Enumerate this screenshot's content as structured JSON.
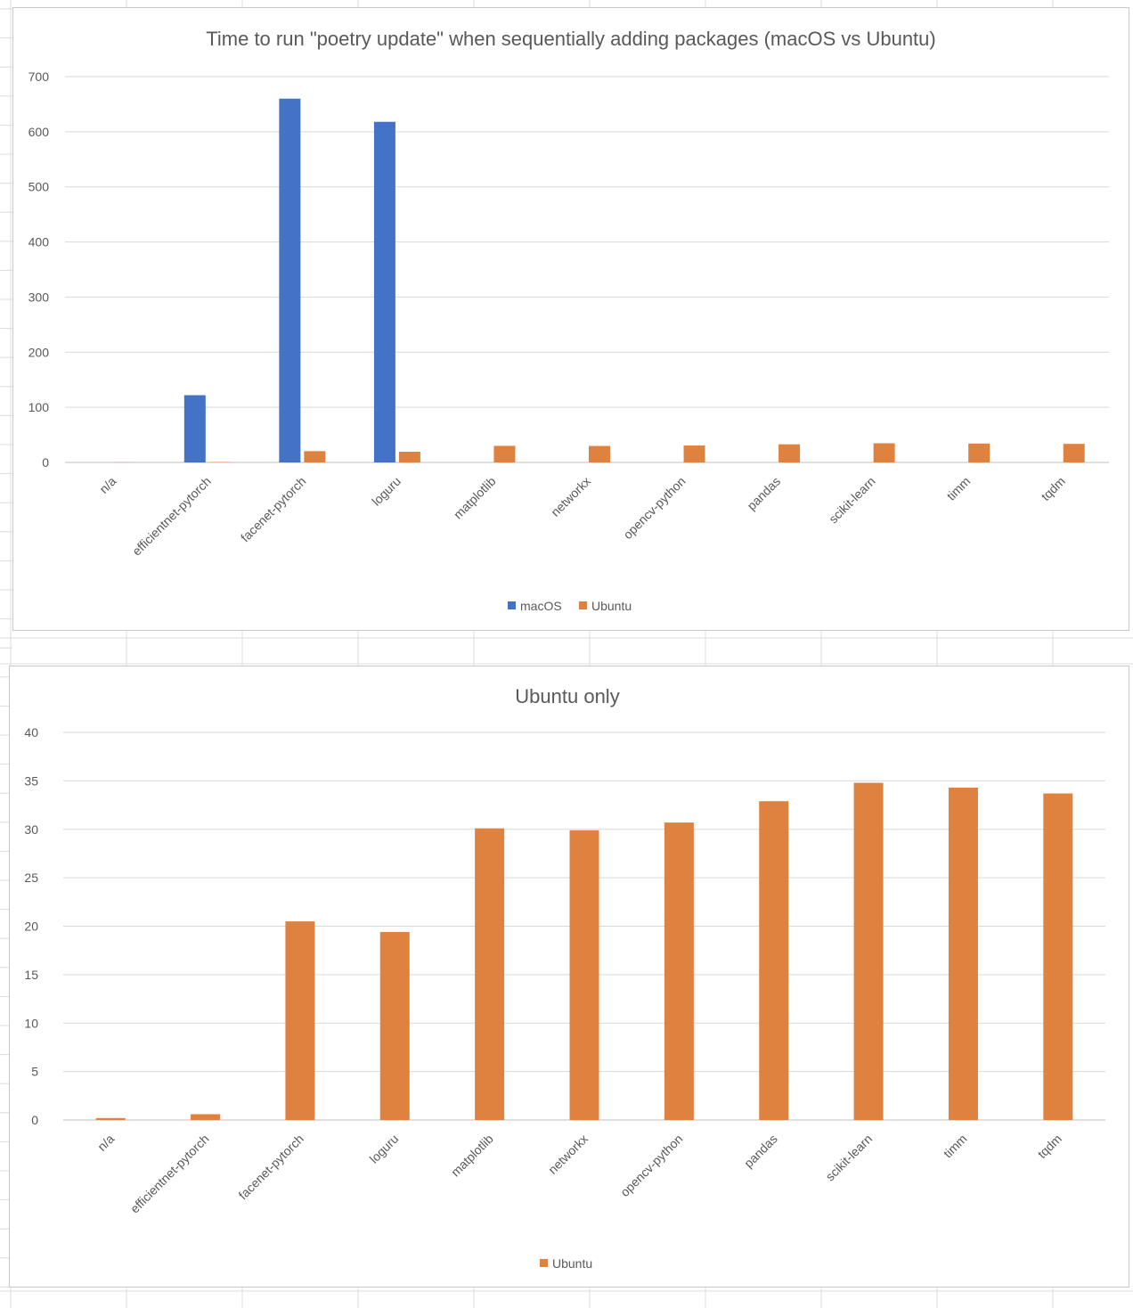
{
  "colors": {
    "macos": "#4472c4",
    "ubuntu": "#e0823f",
    "grid": "#d9d9d9",
    "text": "#595959"
  },
  "chart_data": [
    {
      "type": "bar",
      "title": "Time to run \"poetry update\" when sequentially adding packages (macOS vs Ubuntu)",
      "xlabel": "",
      "ylabel": "",
      "ylim": [
        0,
        700
      ],
      "yticks": [
        "0",
        "100",
        "200",
        "300",
        "400",
        "500",
        "600",
        "700"
      ],
      "grid": true,
      "legend_position": "bottom",
      "categories": [
        "n/a",
        "efficientnet-pytorch",
        "facenet-pytorch",
        "loguru",
        "matplotlib",
        "networkx",
        "opencv-python",
        "pandas",
        "scikit-learn",
        "timm",
        "tqdm"
      ],
      "series": [
        {
          "name": "macOS",
          "color": "#4472c4",
          "values": [
            0,
            122,
            660,
            618,
            0,
            0,
            0,
            0,
            0,
            0,
            0
          ]
        },
        {
          "name": "Ubuntu",
          "color": "#e0823f",
          "values": [
            0.2,
            0.6,
            20.5,
            19.4,
            30.1,
            29.9,
            30.7,
            32.9,
            34.8,
            34.3,
            33.7
          ]
        }
      ]
    },
    {
      "type": "bar",
      "title": "Ubuntu only",
      "xlabel": "",
      "ylabel": "",
      "ylim": [
        0,
        40
      ],
      "yticks": [
        "0",
        "5",
        "10",
        "15",
        "20",
        "25",
        "30",
        "35",
        "40"
      ],
      "grid": true,
      "legend_position": "bottom",
      "categories": [
        "n/a",
        "efficientnet-pytorch",
        "facenet-pytorch",
        "loguru",
        "matplotlib",
        "networkx",
        "opencv-python",
        "pandas",
        "scikit-learn",
        "timm",
        "tqdm"
      ],
      "series": [
        {
          "name": "Ubuntu",
          "color": "#e0823f",
          "values": [
            0.2,
            0.6,
            20.5,
            19.4,
            30.1,
            29.9,
            30.7,
            32.9,
            34.8,
            34.3,
            33.7
          ]
        }
      ]
    }
  ]
}
